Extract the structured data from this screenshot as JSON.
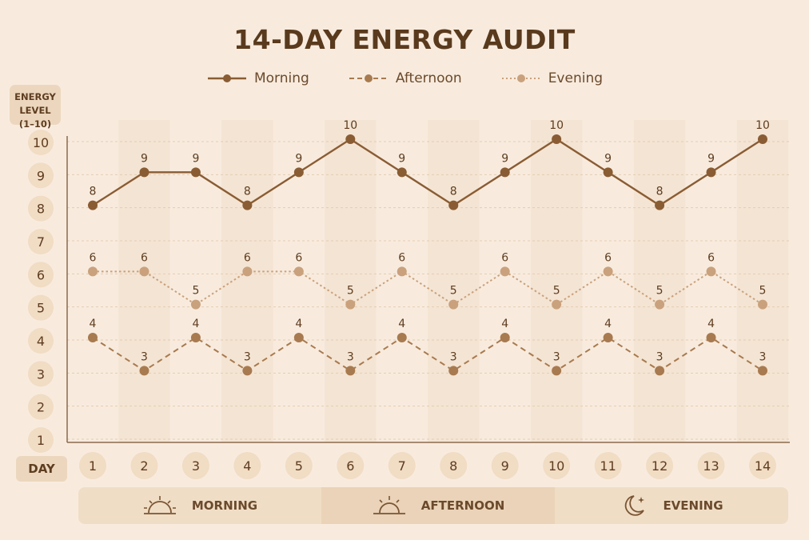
{
  "title": "14-DAY ENERGY AUDIT",
  "legend": {
    "morning": "Morning",
    "afternoon": "Afternoon",
    "evening": "Evening"
  },
  "ylabel_line1": "ENERGY LEVEL",
  "ylabel_line2": "(1–10)",
  "day_label": "DAY",
  "bottom_bar": {
    "morning": "MORNING",
    "afternoon": "AFTERNOON",
    "evening": "EVENING"
  },
  "colors": {
    "morning": "#8a5c33",
    "afternoon": "#a87a4f",
    "evening": "#c9a17c",
    "background": "#f8ebde"
  },
  "chart_data": {
    "type": "line",
    "title": "14-DAY ENERGY AUDIT",
    "xlabel": "DAY",
    "ylabel": "ENERGY LEVEL (1–10)",
    "x": [
      1,
      2,
      3,
      4,
      5,
      6,
      7,
      8,
      9,
      10,
      11,
      12,
      13,
      14
    ],
    "yticks": [
      1,
      2,
      3,
      4,
      5,
      6,
      7,
      8,
      9,
      10
    ],
    "ylim": [
      1,
      10
    ],
    "grid": true,
    "legend_position": "top-center",
    "series": [
      {
        "name": "Morning",
        "style": "solid",
        "values": [
          8,
          9,
          9,
          8,
          9,
          10,
          9,
          8,
          9,
          10,
          9,
          8,
          9,
          10
        ]
      },
      {
        "name": "Afternoon",
        "style": "dashed",
        "values": [
          4,
          3,
          4,
          3,
          4,
          3,
          4,
          3,
          4,
          3,
          4,
          3,
          4,
          3
        ]
      },
      {
        "name": "Evening",
        "style": "dotted",
        "values": [
          6,
          6,
          5,
          6,
          6,
          5,
          6,
          5,
          6,
          5,
          6,
          5,
          6,
          5
        ]
      }
    ]
  }
}
